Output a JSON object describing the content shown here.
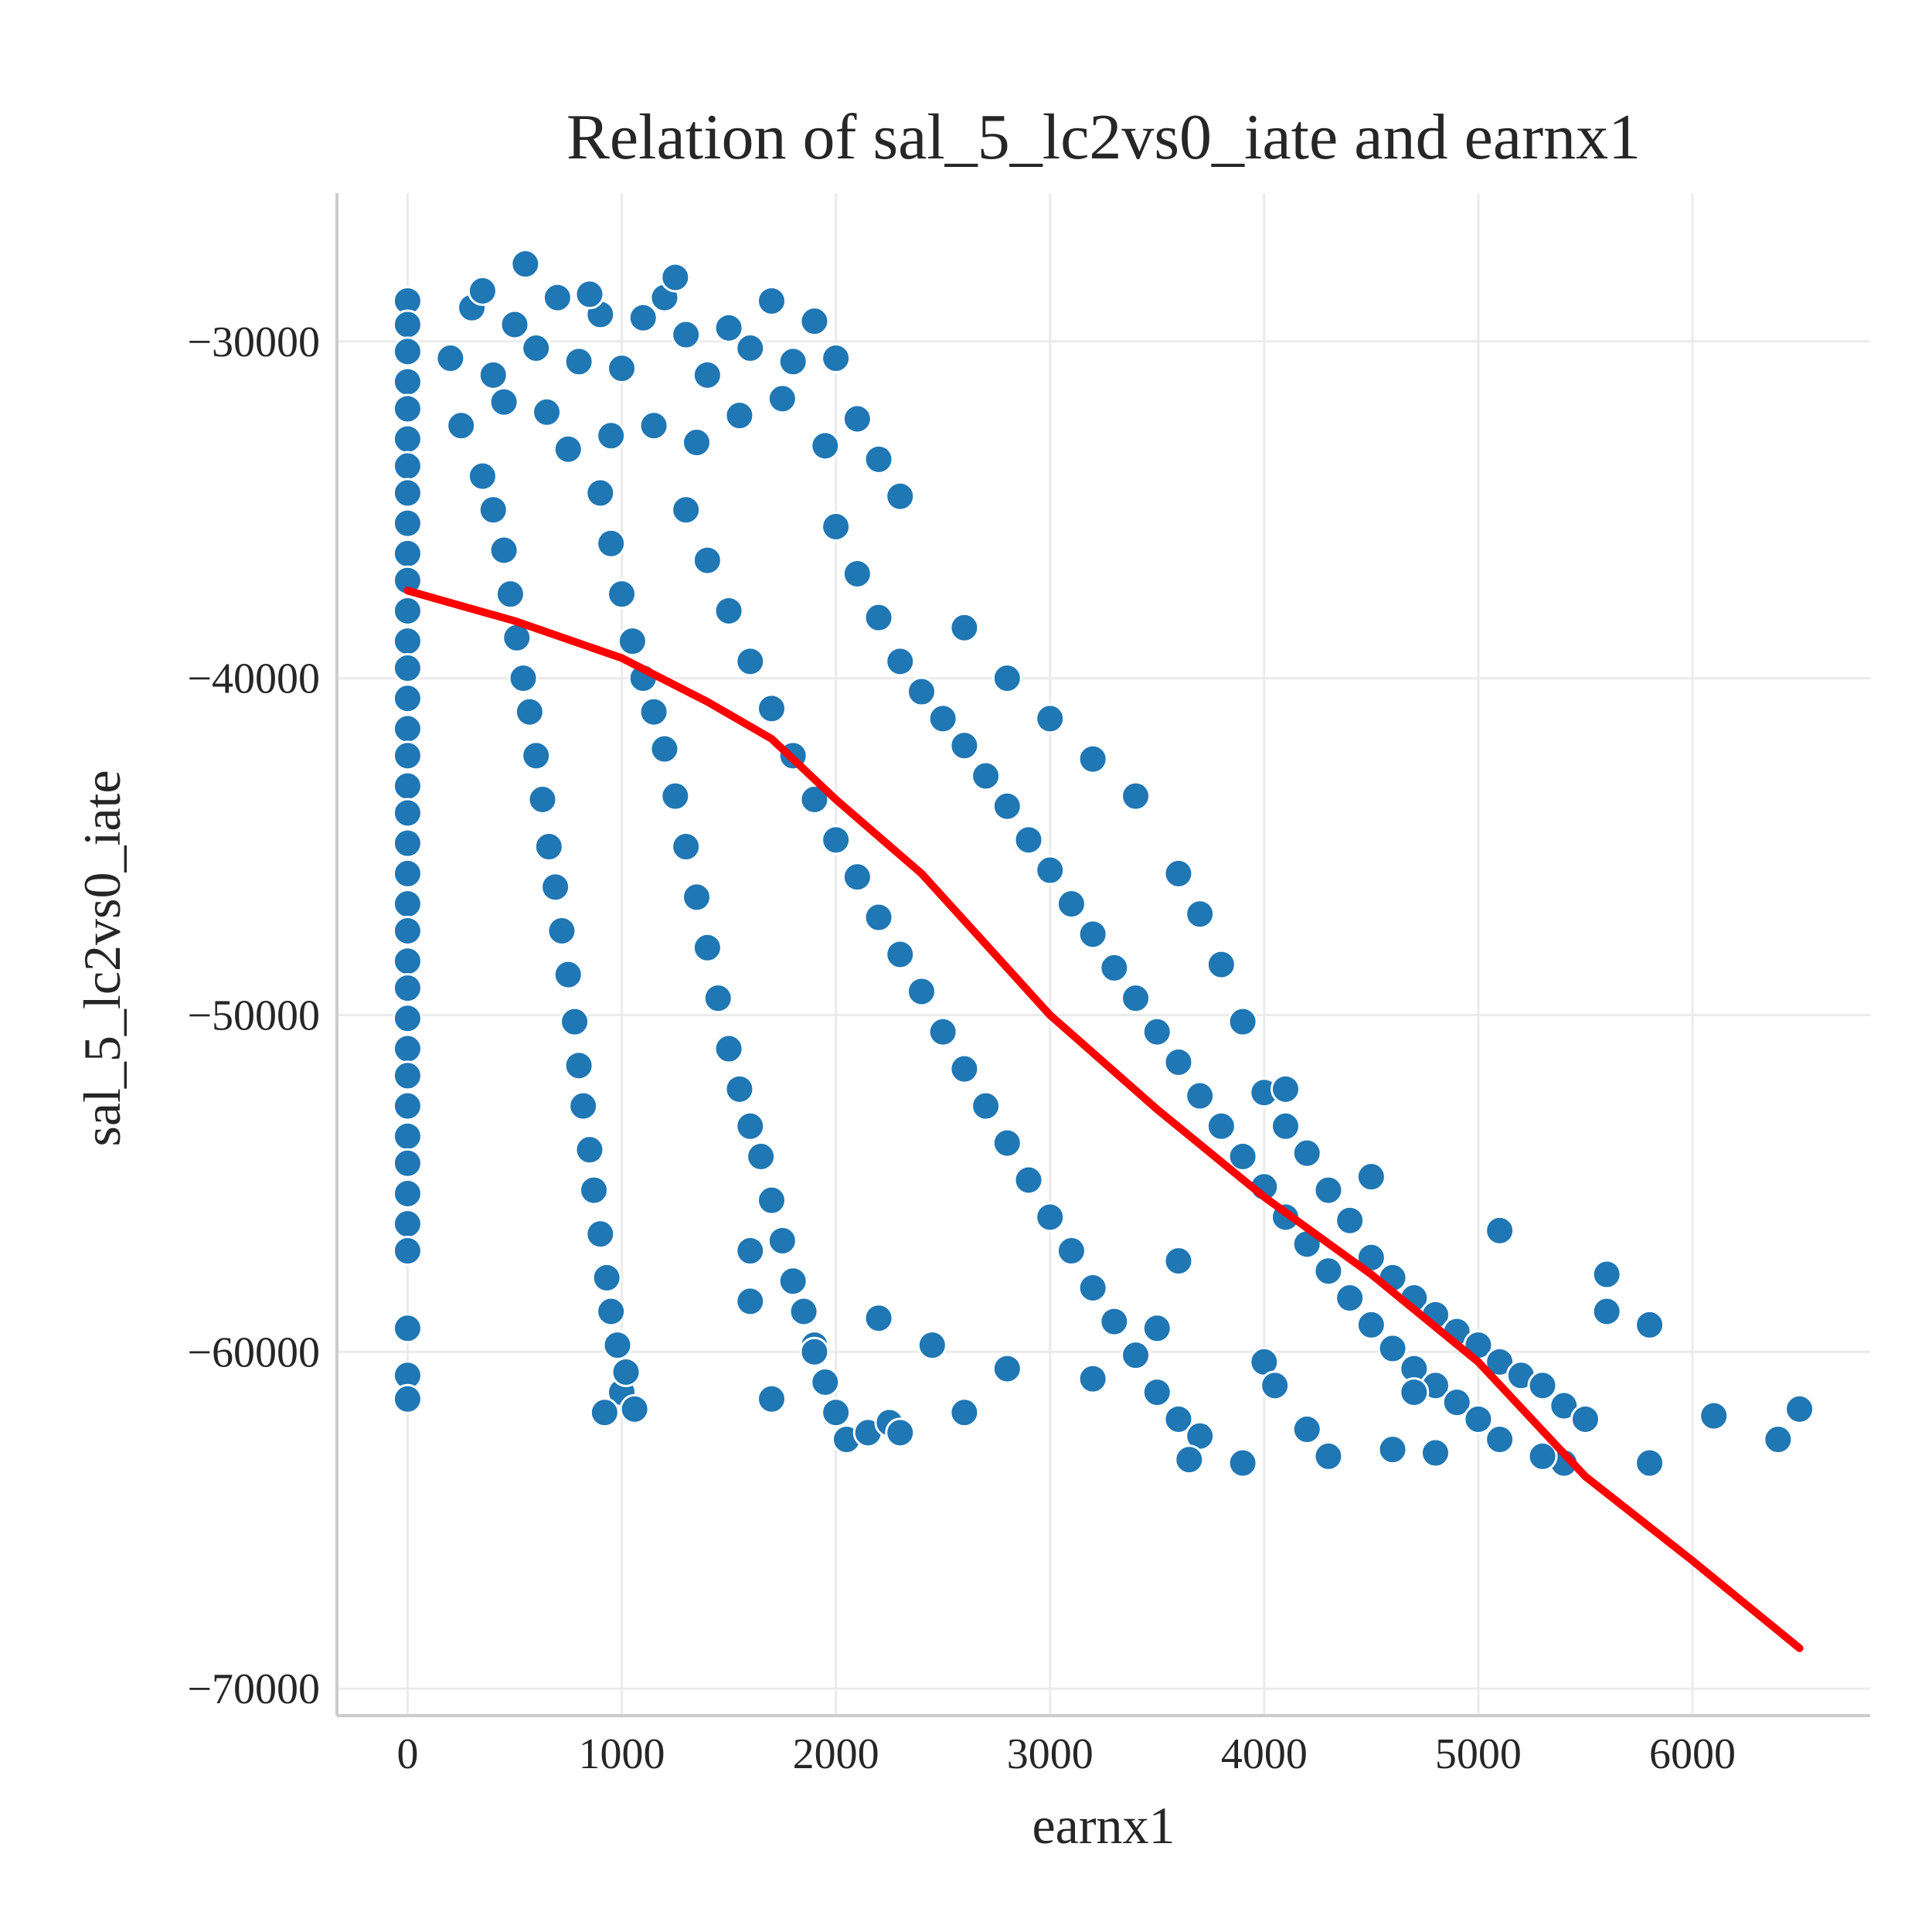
{
  "chart_data": {
    "type": "scatter",
    "title": "Relation of sal_5_lc2vs0_iate and earnx1",
    "xlabel": "earnx1",
    "ylabel": "sal_5_lc2vs0_iate",
    "xlim": [
      -330,
      6830
    ],
    "ylim": [
      -70800,
      -25600
    ],
    "x_ticks": [
      0,
      1000,
      2000,
      3000,
      4000,
      5000,
      6000
    ],
    "x_tick_labels": [
      "0",
      "1000",
      "2000",
      "3000",
      "4000",
      "5000",
      "6000"
    ],
    "y_ticks": [
      -30000,
      -40000,
      -50000,
      -60000,
      -70000
    ],
    "y_tick_labels": [
      "−30000",
      "−40000",
      "−50000",
      "−60000",
      "−70000"
    ],
    "grid": true,
    "colors": {
      "points": "#1f77b4",
      "point_edge": "#ffffff",
      "trend": "#ff0000",
      "grid": "#ebebeb",
      "spine": "#cccccc",
      "text": "#262626"
    },
    "series": [
      {
        "type": "scatter",
        "points": [
          [
            0,
            -28800
          ],
          [
            0,
            -29500
          ],
          [
            0,
            -30300
          ],
          [
            0,
            -31200
          ],
          [
            0,
            -32000
          ],
          [
            0,
            -32900
          ],
          [
            0,
            -33700
          ],
          [
            0,
            -34500
          ],
          [
            0,
            -35400
          ],
          [
            0,
            -36300
          ],
          [
            0,
            -37100
          ],
          [
            0,
            -38000
          ],
          [
            0,
            -38900
          ],
          [
            0,
            -39700
          ],
          [
            0,
            -40600
          ],
          [
            0,
            -41500
          ],
          [
            0,
            -42300
          ],
          [
            0,
            -43200
          ],
          [
            0,
            -44000
          ],
          [
            0,
            -44900
          ],
          [
            0,
            -45800
          ],
          [
            0,
            -46700
          ],
          [
            0,
            -47500
          ],
          [
            0,
            -48400
          ],
          [
            0,
            -49200
          ],
          [
            0,
            -50100
          ],
          [
            0,
            -51000
          ],
          [
            0,
            -51800
          ],
          [
            0,
            -52700
          ],
          [
            0,
            -53600
          ],
          [
            0,
            -54400
          ],
          [
            0,
            -55300
          ],
          [
            0,
            -56200
          ],
          [
            0,
            -57000
          ],
          [
            0,
            -59300
          ],
          [
            0,
            -60700
          ],
          [
            0,
            -61400
          ],
          [
            200,
            -30500
          ],
          [
            300,
            -29000
          ],
          [
            400,
            -31000
          ],
          [
            500,
            -29500
          ],
          [
            600,
            -30200
          ],
          [
            700,
            -28700
          ],
          [
            800,
            -30600
          ],
          [
            900,
            -29200
          ],
          [
            1000,
            -30800
          ],
          [
            1100,
            -29300
          ],
          [
            1200,
            -28700
          ],
          [
            1300,
            -29800
          ],
          [
            1400,
            -31000
          ],
          [
            1500,
            -29600
          ],
          [
            1600,
            -30200
          ],
          [
            1700,
            -28800
          ],
          [
            1800,
            -30600
          ],
          [
            1900,
            -29400
          ],
          [
            2000,
            -30500
          ],
          [
            250,
            -32500
          ],
          [
            450,
            -31800
          ],
          [
            650,
            -32100
          ],
          [
            750,
            -33200
          ],
          [
            950,
            -32800
          ],
          [
            1150,
            -32500
          ],
          [
            1350,
            -33000
          ],
          [
            1550,
            -32200
          ],
          [
            1750,
            -31700
          ],
          [
            1950,
            -33100
          ],
          [
            2100,
            -32300
          ],
          [
            2200,
            -33500
          ],
          [
            2300,
            -34600
          ],
          [
            350,
            -28500
          ],
          [
            550,
            -27700
          ],
          [
            850,
            -28600
          ],
          [
            1250,
            -28100
          ],
          [
            350,
            -34000
          ],
          [
            400,
            -35000
          ],
          [
            450,
            -36200
          ],
          [
            480,
            -37500
          ],
          [
            510,
            -38800
          ],
          [
            540,
            -40000
          ],
          [
            570,
            -41000
          ],
          [
            600,
            -42300
          ],
          [
            630,
            -43600
          ],
          [
            660,
            -45000
          ],
          [
            690,
            -46200
          ],
          [
            720,
            -47500
          ],
          [
            750,
            -48800
          ],
          [
            780,
            -50200
          ],
          [
            800,
            -51500
          ],
          [
            820,
            -52700
          ],
          [
            850,
            -54000
          ],
          [
            870,
            -55200
          ],
          [
            900,
            -56500
          ],
          [
            930,
            -57800
          ],
          [
            950,
            -58800
          ],
          [
            980,
            -59800
          ],
          [
            1000,
            -61200
          ],
          [
            920,
            -61800
          ],
          [
            1060,
            -61700
          ],
          [
            1020,
            -60600
          ],
          [
            900,
            -34500
          ],
          [
            950,
            -36000
          ],
          [
            1000,
            -37500
          ],
          [
            1050,
            -38900
          ],
          [
            1100,
            -40000
          ],
          [
            1150,
            -41000
          ],
          [
            1200,
            -42100
          ],
          [
            1250,
            -43500
          ],
          [
            1300,
            -45000
          ],
          [
            1350,
            -46500
          ],
          [
            1400,
            -48000
          ],
          [
            1450,
            -49500
          ],
          [
            1500,
            -51000
          ],
          [
            1550,
            -52200
          ],
          [
            1600,
            -53300
          ],
          [
            1650,
            -54200
          ],
          [
            1700,
            -55500
          ],
          [
            1750,
            -56700
          ],
          [
            1800,
            -57900
          ],
          [
            1850,
            -58800
          ],
          [
            1900,
            -59800
          ],
          [
            1950,
            -60900
          ],
          [
            2000,
            -61800
          ],
          [
            2050,
            -62600
          ],
          [
            2150,
            -62400
          ],
          [
            2250,
            -62100
          ],
          [
            2300,
            -62400
          ],
          [
            1300,
            -35000
          ],
          [
            1400,
            -36500
          ],
          [
            1500,
            -38000
          ],
          [
            1600,
            -39500
          ],
          [
            1700,
            -40900
          ],
          [
            1800,
            -42300
          ],
          [
            1900,
            -43600
          ],
          [
            2000,
            -44800
          ],
          [
            2100,
            -45900
          ],
          [
            2200,
            -47100
          ],
          [
            2300,
            -48200
          ],
          [
            2400,
            -49300
          ],
          [
            2500,
            -50500
          ],
          [
            2600,
            -51600
          ],
          [
            2700,
            -52700
          ],
          [
            2800,
            -53800
          ],
          [
            2900,
            -54900
          ],
          [
            3000,
            -56000
          ],
          [
            3100,
            -57000
          ],
          [
            3200,
            -58100
          ],
          [
            3300,
            -59100
          ],
          [
            3400,
            -60100
          ],
          [
            3500,
            -61200
          ],
          [
            3600,
            -62000
          ],
          [
            3700,
            -62500
          ],
          [
            3900,
            -63300
          ],
          [
            2000,
            -35500
          ],
          [
            2100,
            -36900
          ],
          [
            2200,
            -38200
          ],
          [
            2300,
            -39500
          ],
          [
            2400,
            -40400
          ],
          [
            2500,
            -41200
          ],
          [
            2600,
            -42000
          ],
          [
            2700,
            -42900
          ],
          [
            2800,
            -43800
          ],
          [
            2900,
            -44800
          ],
          [
            3000,
            -45700
          ],
          [
            3100,
            -46700
          ],
          [
            3200,
            -47600
          ],
          [
            3300,
            -48600
          ],
          [
            3400,
            -49500
          ],
          [
            3500,
            -50500
          ],
          [
            3600,
            -51400
          ],
          [
            3700,
            -52400
          ],
          [
            3800,
            -53300
          ],
          [
            3900,
            -54200
          ],
          [
            4000,
            -55100
          ],
          [
            4100,
            -56000
          ],
          [
            4200,
            -56800
          ],
          [
            4300,
            -57600
          ],
          [
            4400,
            -58400
          ],
          [
            4500,
            -59200
          ],
          [
            4600,
            -59900
          ],
          [
            4700,
            -60500
          ],
          [
            4800,
            -61000
          ],
          [
            4900,
            -61500
          ],
          [
            5000,
            -62000
          ],
          [
            5100,
            -62600
          ],
          [
            2600,
            -38500
          ],
          [
            2800,
            -40000
          ],
          [
            3000,
            -41200
          ],
          [
            3200,
            -42400
          ],
          [
            3400,
            -43500
          ],
          [
            3600,
            -45800
          ],
          [
            3700,
            -47000
          ],
          [
            3800,
            -48500
          ],
          [
            3900,
            -50200
          ],
          [
            4000,
            -52300
          ],
          [
            4100,
            -53300
          ],
          [
            4200,
            -54100
          ],
          [
            4300,
            -55200
          ],
          [
            4400,
            -56100
          ],
          [
            4500,
            -57200
          ],
          [
            4600,
            -57800
          ],
          [
            4700,
            -58400
          ],
          [
            4800,
            -58900
          ],
          [
            4900,
            -59400
          ],
          [
            5000,
            -59800
          ],
          [
            5100,
            -60300
          ],
          [
            5200,
            -60700
          ],
          [
            5300,
            -61000
          ],
          [
            5400,
            -61600
          ],
          [
            5500,
            -62000
          ],
          [
            5600,
            -58800
          ],
          [
            5800,
            -59200
          ],
          [
            5400,
            -63300
          ],
          [
            5800,
            -63300
          ],
          [
            6100,
            -61900
          ],
          [
            6400,
            -62600
          ],
          [
            6500,
            -61700
          ],
          [
            5600,
            -57700
          ],
          [
            5100,
            -56400
          ],
          [
            4100,
            -52200
          ],
          [
            4500,
            -54800
          ],
          [
            1600,
            -57000
          ],
          [
            1600,
            -58500
          ],
          [
            1700,
            -61400
          ],
          [
            1900,
            -60000
          ],
          [
            2200,
            -59000
          ],
          [
            2450,
            -59800
          ],
          [
            2600,
            -61800
          ],
          [
            2800,
            -60500
          ],
          [
            3200,
            -60800
          ],
          [
            3500,
            -59300
          ],
          [
            3600,
            -57300
          ],
          [
            4000,
            -60300
          ],
          [
            4200,
            -62300
          ],
          [
            4600,
            -62900
          ],
          [
            4800,
            -63000
          ],
          [
            5300,
            -63100
          ],
          [
            3650,
            -63200
          ],
          [
            4300,
            -63100
          ],
          [
            4050,
            -61000
          ],
          [
            4700,
            -61200
          ]
        ]
      },
      {
        "type": "line",
        "name": "trend",
        "points": [
          [
            0,
            -37400
          ],
          [
            500,
            -38300
          ],
          [
            1000,
            -39400
          ],
          [
            1400,
            -40700
          ],
          [
            1700,
            -41800
          ],
          [
            2000,
            -43600
          ],
          [
            2400,
            -45800
          ],
          [
            2700,
            -47900
          ],
          [
            3000,
            -50000
          ],
          [
            3500,
            -52800
          ],
          [
            4000,
            -55400
          ],
          [
            4500,
            -57700
          ],
          [
            5000,
            -60300
          ],
          [
            5500,
            -63700
          ],
          [
            6000,
            -66200
          ],
          [
            6500,
            -68800
          ]
        ]
      }
    ]
  }
}
